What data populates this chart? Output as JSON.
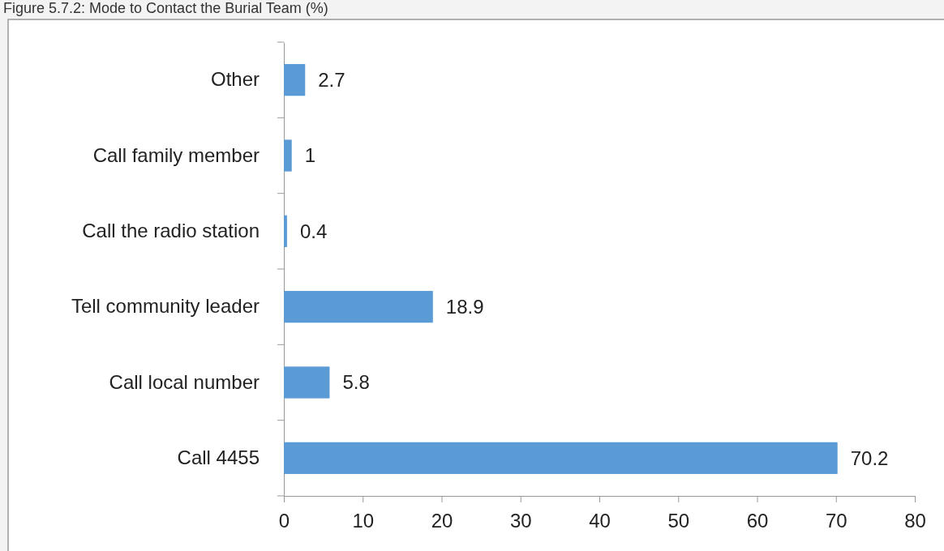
{
  "chart_data": {
    "type": "bar",
    "title": "Figure 5.7.2: Mode to Contact the Burial Team (%)",
    "orientation": "horizontal",
    "categories": [
      "Other",
      "Call family member",
      "Call the radio station",
      "Tell community  leader",
      "Call local number",
      "Call 4455"
    ],
    "values": [
      2.7,
      1,
      0.4,
      18.9,
      5.8,
      70.2
    ],
    "color": "#5b9bd5",
    "data_labels": true,
    "xlim": [
      0,
      80
    ],
    "xticks": [
      0,
      10,
      20,
      30,
      40,
      50,
      60,
      70,
      80
    ],
    "grid": false
  }
}
